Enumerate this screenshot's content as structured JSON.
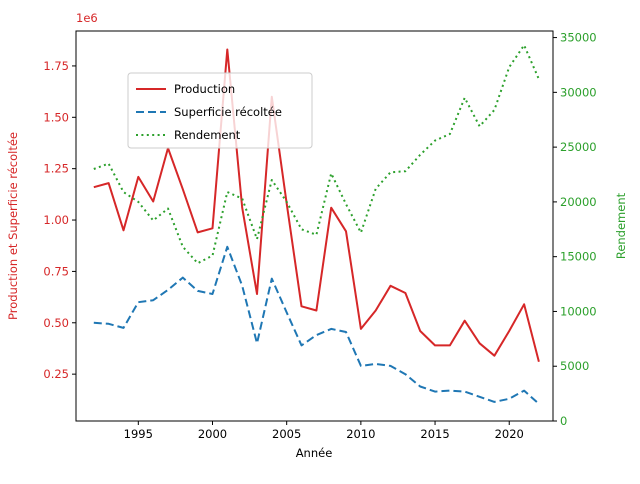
{
  "chart_data": {
    "type": "line",
    "x": [
      1992,
      1993,
      1994,
      1995,
      1996,
      1997,
      1998,
      1999,
      2000,
      2001,
      2002,
      2003,
      2004,
      2005,
      2006,
      2007,
      2008,
      2009,
      2010,
      2011,
      2012,
      2013,
      2014,
      2015,
      2016,
      2017,
      2018,
      2019,
      2020,
      2021,
      2022
    ],
    "series": [
      {
        "name": "Production",
        "color": "#d62728",
        "style": "solid",
        "axis": "left",
        "values": [
          1160000,
          1180000,
          950000,
          1210000,
          1090000,
          1350000,
          1150000,
          940000,
          960000,
          1830000,
          1060000,
          640000,
          1600000,
          1080000,
          580000,
          560000,
          1060000,
          945000,
          470000,
          560000,
          680000,
          645000,
          460000,
          390000,
          390000,
          510000,
          400000,
          340000,
          460000,
          590000,
          310000
        ]
      },
      {
        "name": "Superficie récoltée",
        "color": "#1f77b4",
        "style": "dashed",
        "axis": "left",
        "values": [
          500000,
          495000,
          475000,
          600000,
          610000,
          660000,
          720000,
          655000,
          640000,
          870000,
          680000,
          400000,
          715000,
          550000,
          390000,
          440000,
          470000,
          455000,
          290000,
          300000,
          290000,
          250000,
          190000,
          165000,
          170000,
          165000,
          140000,
          115000,
          130000,
          170000,
          105000
        ]
      },
      {
        "name": "Rendement",
        "color": "#2ca02c",
        "style": "dotted",
        "axis": "right",
        "values": [
          23000,
          23500,
          20900,
          20000,
          18300,
          19400,
          15900,
          14400,
          15100,
          20900,
          20300,
          16600,
          22000,
          20000,
          17500,
          17000,
          22600,
          19800,
          17200,
          21200,
          22700,
          22800,
          24300,
          25600,
          26200,
          29500,
          26900,
          28400,
          32300,
          34300,
          31200
        ]
      }
    ],
    "xlabel": "Année",
    "ylabel_left": "Production et Superficie récoltée",
    "ylabel_right": "Rendement",
    "left_axis": {
      "offset_label": "1e6",
      "color": "#d62728",
      "ticks": [
        250000,
        500000,
        750000,
        1000000,
        1250000,
        1500000,
        1750000
      ],
      "range": [
        22000,
        1920000
      ]
    },
    "right_axis": {
      "color": "#2ca02c",
      "ticks": [
        0,
        5000,
        10000,
        15000,
        20000,
        25000,
        30000,
        35000
      ],
      "range": [
        0,
        35600
      ]
    },
    "x_axis": {
      "color": "#000000",
      "ticks": [
        1995,
        2000,
        2005,
        2010,
        2015,
        2020
      ],
      "range": [
        1990.8,
        2022.95
      ]
    },
    "legend": {
      "position": "upper-left"
    }
  }
}
